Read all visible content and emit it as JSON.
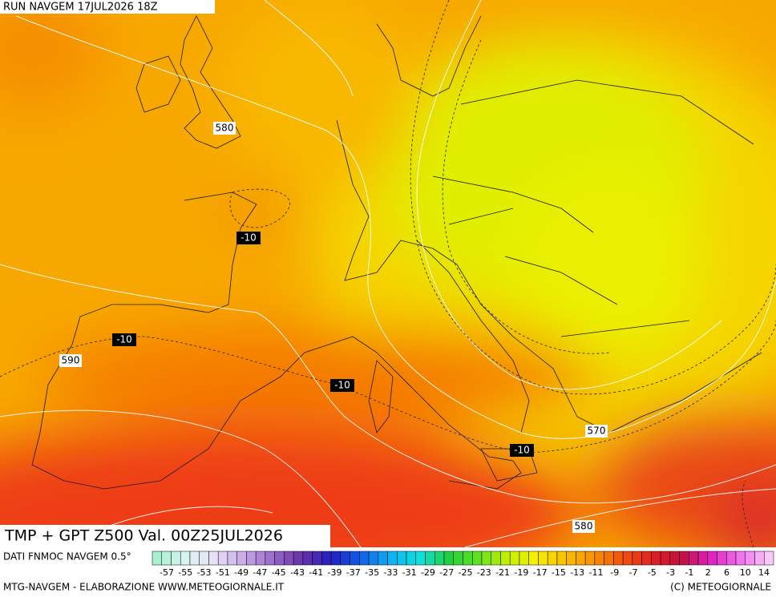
{
  "header": {
    "run": "RUN NAVGEM 17JUL2026 18Z"
  },
  "map": {
    "height_labels": [
      "580",
      "590",
      "570",
      "580"
    ],
    "temp_labels": [
      "-10",
      "-10",
      "-10",
      "-10"
    ]
  },
  "footer": {
    "title": "TMP + GPT Z500 Val. 00Z25JUL2026",
    "source": "DATI FNMOC NAVGEM 0.5°",
    "credit": "MTG-NAVGEM - ELABORAZIONE WWW.METEOGIORNALE.IT",
    "copyright": "(C) METEOGIORNALE"
  },
  "legend": {
    "labels": [
      -57,
      -55,
      -53,
      -51,
      -49,
      -47,
      -45,
      -43,
      -41,
      -39,
      -37,
      -35,
      -33,
      -31,
      -29,
      -27,
      -25,
      -23,
      -21,
      -19,
      -17,
      -15,
      -13,
      -11,
      -9,
      -7,
      -5,
      -3,
      -1,
      2,
      6,
      10,
      14
    ]
  }
}
